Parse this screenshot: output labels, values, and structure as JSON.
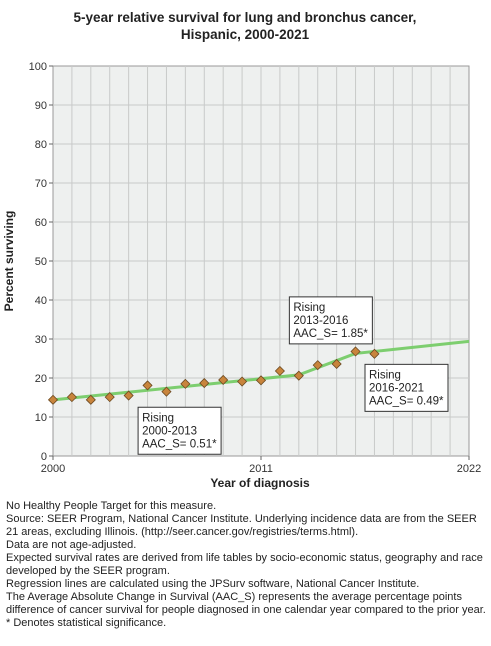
{
  "chart_data": {
    "type": "scatter",
    "title_lines": [
      "5-year relative survival for lung and bronchus cancer,",
      "Hispanic,  2000-2021"
    ],
    "xlabel": "Year of diagnosis",
    "ylabel": "Percent surviving",
    "xlim": [
      2000,
      2022
    ],
    "ylim": [
      0,
      100
    ],
    "x_ticks": [
      "2000",
      "2011",
      "2022"
    ],
    "y_ticks": [
      "0",
      "10",
      "20",
      "30",
      "40",
      "50",
      "60",
      "70",
      "80",
      "90",
      "100"
    ],
    "grid": true,
    "observed": {
      "marker": "diamond",
      "color": "#c8843c",
      "x": [
        2000,
        2001,
        2002,
        2003,
        2004,
        2005,
        2006,
        2007,
        2008,
        2009,
        2010,
        2011,
        2012,
        2013,
        2014,
        2015,
        2016,
        2017
      ],
      "y": [
        14.4,
        15.1,
        14.4,
        15.1,
        15.5,
        18.1,
        16.5,
        18.5,
        18.7,
        19.5,
        19.1,
        19.4,
        21.8,
        20.6,
        23.3,
        23.6,
        26.8,
        26.2
      ]
    },
    "trend": {
      "color": "#7dce6f",
      "x": [
        2000,
        2013,
        2016,
        2022
      ],
      "y": [
        14.4,
        20.8,
        26.3,
        29.4
      ]
    },
    "annotations": [
      {
        "lines": [
          "Rising",
          "2000-2013",
          "AAC_S=  0.51*"
        ],
        "x": 2004.5,
        "y": 12.5
      },
      {
        "lines": [
          "Rising",
          "2013-2016",
          "AAC_S=  1.85*"
        ],
        "x": 2012.5,
        "y": 40.8
      },
      {
        "lines": [
          "Rising",
          "2016-2021",
          "AAC_S=  0.49*"
        ],
        "x": 2016.5,
        "y": 23.5
      }
    ]
  },
  "footnotes": [
    "No Healthy People Target for this measure.",
    "Source: SEER Program, National Cancer Institute. Underlying incidence data are from the SEER 21 areas, excluding Illinois. (http://seer.cancer.gov/registries/terms.html).",
    "Data are not age-adjusted.",
    "Expected survival rates are derived from life tables by socio-economic status, geography and race developed by the SEER program.",
    "Regression lines are calculated using the JPSurv software, National Cancer Institute.",
    "The Average Absolute Change in Survival (AAC_S) represents the average percentage points difference of cancer survival for people diagnosed in one calendar year compared to the prior year.",
    "* Denotes statistical significance."
  ]
}
